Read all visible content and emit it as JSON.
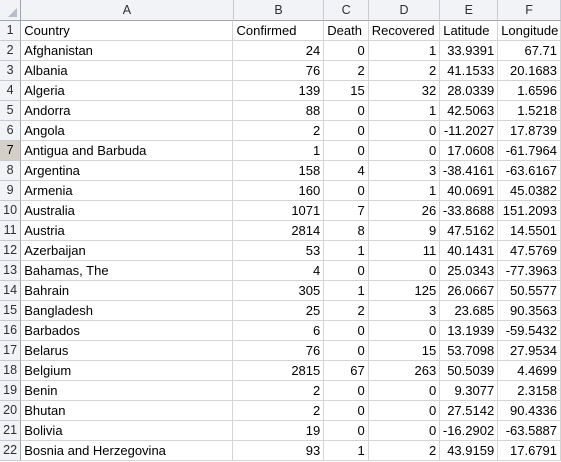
{
  "sheet": {
    "columns": [
      "A",
      "B",
      "C",
      "D",
      "E",
      "F"
    ],
    "row_numbers": [
      "1",
      "2",
      "3",
      "4",
      "5",
      "6",
      "7",
      "8",
      "9",
      "10",
      "11",
      "12",
      "13",
      "14",
      "15",
      "16",
      "17",
      "18",
      "19",
      "20",
      "21",
      "22"
    ],
    "selected_row": "7",
    "header": [
      "Country",
      "Confirmed",
      "Death",
      "Recovered",
      "Latitude",
      "Longitude"
    ],
    "rows": [
      [
        "Afghanistan",
        "24",
        "0",
        "1",
        "33.9391",
        "67.71"
      ],
      [
        "Albania",
        "76",
        "2",
        "2",
        "41.1533",
        "20.1683"
      ],
      [
        "Algeria",
        "139",
        "15",
        "32",
        "28.0339",
        "1.6596"
      ],
      [
        "Andorra",
        "88",
        "0",
        "1",
        "42.5063",
        "1.5218"
      ],
      [
        "Angola",
        "2",
        "0",
        "0",
        "-11.2027",
        "17.8739"
      ],
      [
        "Antigua and Barbuda",
        "1",
        "0",
        "0",
        "17.0608",
        "-61.7964"
      ],
      [
        "Argentina",
        "158",
        "4",
        "3",
        "-38.4161",
        "-63.6167"
      ],
      [
        "Armenia",
        "160",
        "0",
        "1",
        "40.0691",
        "45.0382"
      ],
      [
        "Australia",
        "1071",
        "7",
        "26",
        "-33.8688",
        "151.2093"
      ],
      [
        "Austria",
        "2814",
        "8",
        "9",
        "47.5162",
        "14.5501"
      ],
      [
        "Azerbaijan",
        "53",
        "1",
        "11",
        "40.1431",
        "47.5769"
      ],
      [
        "Bahamas, The",
        "4",
        "0",
        "0",
        "25.0343",
        "-77.3963"
      ],
      [
        "Bahrain",
        "305",
        "1",
        "125",
        "26.0667",
        "50.5577"
      ],
      [
        "Bangladesh",
        "25",
        "2",
        "3",
        "23.685",
        "90.3563"
      ],
      [
        "Barbados",
        "6",
        "0",
        "0",
        "13.1939",
        "-59.5432"
      ],
      [
        "Belarus",
        "76",
        "0",
        "15",
        "53.7098",
        "27.9534"
      ],
      [
        "Belgium",
        "2815",
        "67",
        "263",
        "50.5039",
        "4.4699"
      ],
      [
        "Benin",
        "2",
        "0",
        "0",
        "9.3077",
        "2.3158"
      ],
      [
        "Bhutan",
        "2",
        "0",
        "0",
        "27.5142",
        "90.4336"
      ],
      [
        "Bolivia",
        "19",
        "0",
        "0",
        "-16.2902",
        "-63.5887"
      ],
      [
        "Bosnia and Herzegovina",
        "93",
        "1",
        "2",
        "43.9159",
        "17.6791"
      ]
    ]
  }
}
